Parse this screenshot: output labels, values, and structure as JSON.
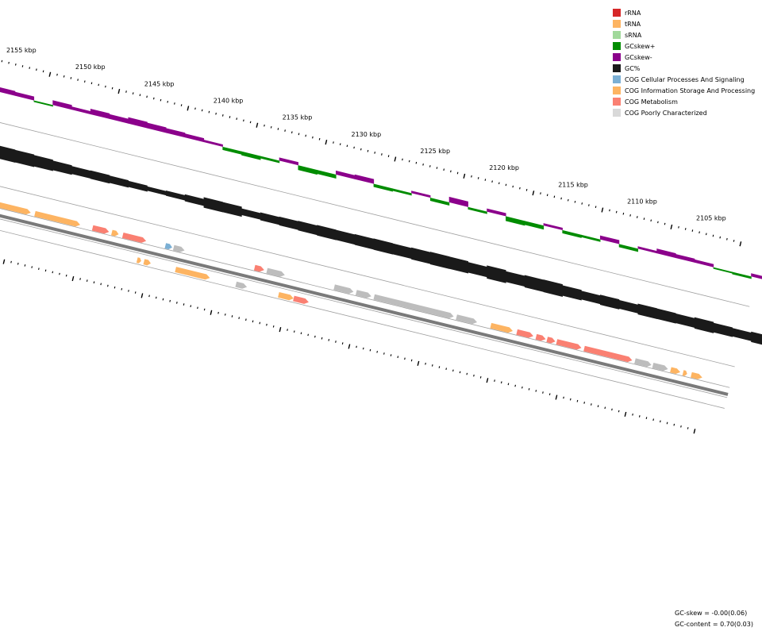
{
  "legend": [
    {
      "label": "rRNA",
      "color": "#d62728"
    },
    {
      "label": "tRNA",
      "color": "#fdb462"
    },
    {
      "label": "sRNA",
      "color": "#a1d99b"
    },
    {
      "label": "GCskew+",
      "color": "#008c00"
    },
    {
      "label": "GCskew-",
      "color": "#8b008b"
    },
    {
      "label": "GC%",
      "color": "#1a1a1a"
    },
    {
      "label": "COG Cellular Processes And Signaling",
      "color": "#7bafd4"
    },
    {
      "label": "COG Information Storage And Processing",
      "color": "#fdb462"
    },
    {
      "label": "COG Metabolism",
      "color": "#fa8072"
    },
    {
      "label": "COG Poorly Characterized",
      "color": "#d9d9d9"
    }
  ],
  "stats": {
    "gc_skew": "GC-skew = -0.00(0.06)",
    "gc_content": "GC-content = 0.70(0.03)"
  },
  "chart_data": {
    "type": "genome_map",
    "scale_labels": [
      "2155 kbp",
      "2150 kbp",
      "2145 kbp",
      "2140 kbp",
      "2135 kbp",
      "2130 kbp",
      "2125 kbp",
      "2120 kbp",
      "2115 kbp",
      "2110 kbp",
      "2105 kbp"
    ],
    "scale_kbp": [
      2155,
      2150,
      2145,
      2140,
      2135,
      2130,
      2125,
      2120,
      2115,
      2110,
      2105
    ],
    "gc_skew_profile": [
      -0.6,
      -0.5,
      0.2,
      -0.6,
      -0.4,
      -0.7,
      -0.6,
      -0.8,
      -0.7,
      -0.6,
      -0.5,
      -0.3,
      0.4,
      0.5,
      0.3,
      -0.4,
      0.6,
      0.5,
      -0.5,
      -0.6,
      0.4,
      0.3,
      -0.3,
      0.4,
      -0.7,
      0.3,
      -0.4,
      0.6,
      0.5,
      -0.3,
      0.4,
      0.3,
      -0.5,
      0.4,
      -0.3,
      -0.6,
      -0.5,
      -0.4,
      0.2,
      0.3,
      -0.4
    ],
    "gc_content_profile": [
      0.75,
      0.72,
      0.65,
      0.55,
      0.45,
      0.48,
      0.42,
      0.35,
      0.25,
      0.3,
      0.4,
      0.6,
      0.58,
      0.38,
      0.45,
      0.5,
      0.55,
      0.6,
      0.58,
      0.62,
      0.65,
      0.62,
      0.68,
      0.72,
      0.7,
      0.6,
      0.75,
      0.62,
      0.7,
      0.72,
      0.6,
      0.5,
      0.58,
      0.5,
      0.62,
      0.6,
      0.55,
      0.65,
      0.55,
      0.48,
      0.6
    ],
    "features": [
      {
        "start": 0.5,
        "end": 11.0,
        "cog": "info",
        "strand": "+"
      },
      {
        "start": 14.0,
        "end": 16.0,
        "cog": "info",
        "strand": "+"
      },
      {
        "start": 18.0,
        "end": 20.0,
        "cog": "info",
        "strand": "+"
      },
      {
        "start": 28.0,
        "end": 57.0,
        "cog": "info",
        "strand": "+"
      },
      {
        "start": 60.0,
        "end": 93.0,
        "cog": "info",
        "strand": "+"
      },
      {
        "start": 102.0,
        "end": 114.0,
        "cog": "met",
        "strand": "+"
      },
      {
        "start": 116.0,
        "end": 121.0,
        "cog": "info",
        "strand": "+"
      },
      {
        "start": 124.0,
        "end": 141.0,
        "cog": "met",
        "strand": "+"
      },
      {
        "start": 155.0,
        "end": 160.0,
        "cog": "cell",
        "strand": "+"
      },
      {
        "start": 161.0,
        "end": 169.0,
        "cog": "poor",
        "strand": "+"
      },
      {
        "start": 220.0,
        "end": 227.0,
        "cog": "met",
        "strand": "+"
      },
      {
        "start": 229.0,
        "end": 242.0,
        "cog": "poor",
        "strand": "+"
      },
      {
        "start": 278.0,
        "end": 292.0,
        "cog": "poor",
        "strand": "+"
      },
      {
        "start": 294.0,
        "end": 305.0,
        "cog": "poor",
        "strand": "+"
      },
      {
        "start": 307.0,
        "end": 365.0,
        "cog": "poor",
        "strand": "+"
      },
      {
        "start": 367.0,
        "end": 382.0,
        "cog": "poor",
        "strand": "+"
      },
      {
        "start": 392.0,
        "end": 408.0,
        "cog": "info",
        "strand": "+"
      },
      {
        "start": 411.0,
        "end": 423.0,
        "cog": "met",
        "strand": "+"
      },
      {
        "start": 425.0,
        "end": 432.0,
        "cog": "met",
        "strand": "+"
      },
      {
        "start": 433.0,
        "end": 439.0,
        "cog": "met",
        "strand": "+"
      },
      {
        "start": 440.0,
        "end": 458.0,
        "cog": "met",
        "strand": "+"
      },
      {
        "start": 460.0,
        "end": 495.0,
        "cog": "met",
        "strand": "+"
      },
      {
        "start": 497.0,
        "end": 509.0,
        "cog": "poor",
        "strand": "+"
      },
      {
        "start": 510.0,
        "end": 521.0,
        "cog": "poor",
        "strand": "+"
      },
      {
        "start": 523.0,
        "end": 530.0,
        "cog": "info",
        "strand": "+"
      },
      {
        "start": 532.0,
        "end": 535.0,
        "cog": "info",
        "strand": "+"
      },
      {
        "start": 538.0,
        "end": 546.0,
        "cog": "info",
        "strand": "+"
      },
      {
        "start": 138.0,
        "end": 141.0,
        "cog": "info",
        "strand": "-"
      },
      {
        "start": 143.0,
        "end": 148.0,
        "cog": "info",
        "strand": "-"
      },
      {
        "start": 166.0,
        "end": 191.0,
        "cog": "info",
        "strand": "-"
      },
      {
        "start": 210.0,
        "end": 218.0,
        "cog": "poor",
        "strand": "-"
      },
      {
        "start": 241.0,
        "end": 252.0,
        "cog": "info",
        "strand": "-"
      },
      {
        "start": 252.0,
        "end": 263.0,
        "cog": "met",
        "strand": "-"
      }
    ]
  }
}
